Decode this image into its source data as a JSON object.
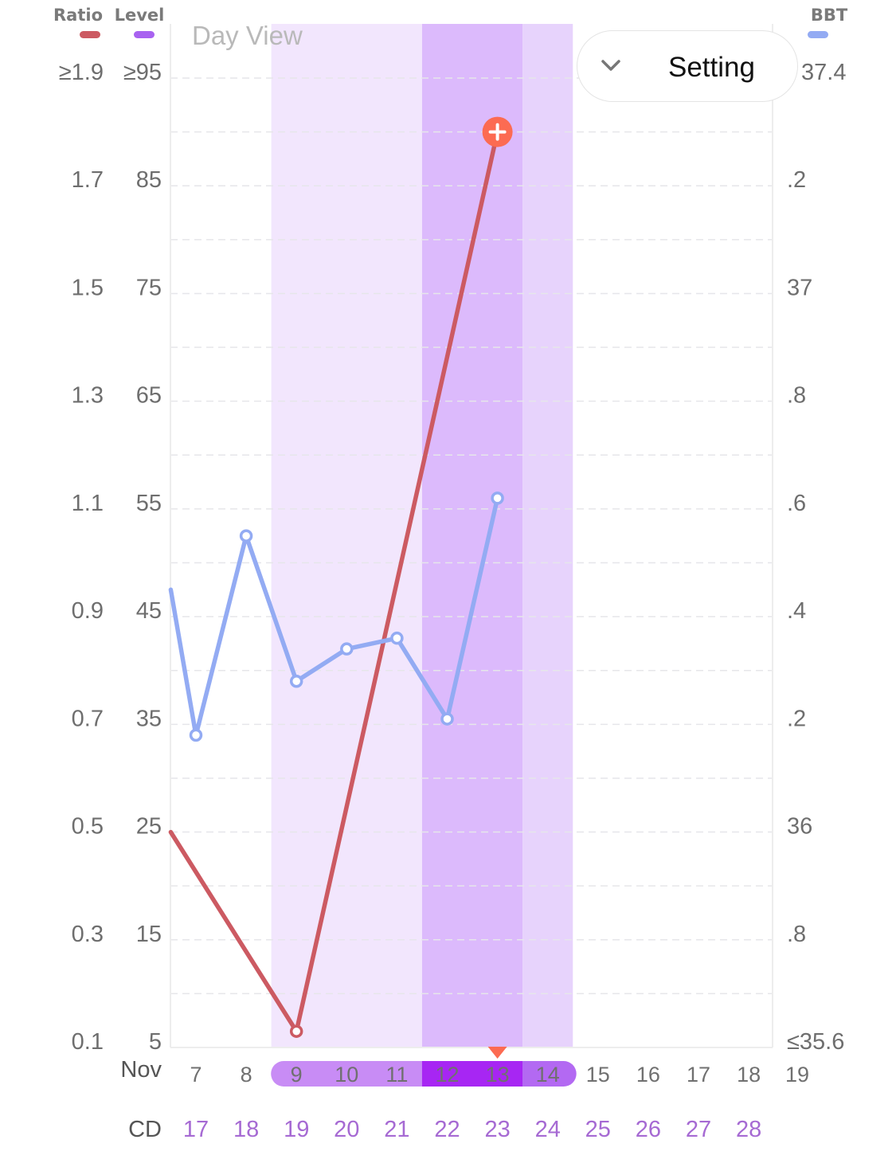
{
  "view_title": "Day View",
  "setting_button": {
    "label": "Setting",
    "icon": "chevron-down-icon"
  },
  "colors": {
    "ratio": "#cc5a62",
    "level": "#a862f0",
    "bbt": "#93abf3",
    "fertile_light": "#f2e6fd",
    "fertile_medium": "#e7d3fc",
    "fertile_peak": "#dcbafc",
    "pill_light": "#c88cf5",
    "pill_peak": "#a726f3",
    "pill_end": "#b369f2",
    "cd_text": "#a66ad3",
    "today_marker": "#fc6b52"
  },
  "chart_data": {
    "type": "line",
    "legend": [
      {
        "name": "Ratio",
        "color": "#cc5a62"
      },
      {
        "name": "Level",
        "color": "#a862f0"
      },
      {
        "name": "BBT",
        "color": "#93abf3"
      }
    ],
    "month_label": "Nov",
    "cd_label": "CD",
    "x": [
      7,
      8,
      9,
      10,
      11,
      12,
      13,
      14,
      15,
      16,
      17,
      18,
      19
    ],
    "x_labels": [
      "7",
      "8",
      "9",
      "10",
      "11",
      "12",
      "13",
      "14",
      "15",
      "16",
      "17",
      "18",
      "19"
    ],
    "cycle_days": [
      "17",
      "18",
      "19",
      "20",
      "21",
      "22",
      "23",
      "24",
      "25",
      "26",
      "27",
      "28"
    ],
    "left_axis_ratio_ticks": [
      "≥1.9",
      "1.7",
      "1.5",
      "1.3",
      "1.1",
      "0.9",
      "0.7",
      "0.5",
      "0.3",
      "0.1"
    ],
    "left_axis_level_ticks": [
      "≥95",
      "85",
      "75",
      "65",
      "55",
      "45",
      "35",
      "25",
      "15",
      "5"
    ],
    "right_axis_bbt_ticks": [
      "37.4",
      ".2",
      "37",
      ".8",
      ".6",
      ".4",
      ".2",
      "36",
      ".8",
      "≤35.6"
    ],
    "ratio_range": [
      0.1,
      1.9
    ],
    "bbt_range": [
      35.6,
      37.4
    ],
    "fertile_window": {
      "start": 9,
      "end": 14,
      "peak_start": 12,
      "peak_end": 13
    },
    "today": 13,
    "series": [
      {
        "name": "Ratio",
        "color": "#cc5a62",
        "points": [
          {
            "x": 6.5,
            "y": 0.5
          },
          {
            "x": 9,
            "y": 0.13
          },
          {
            "x": 13,
            "y": 1.8
          }
        ],
        "shown_points": [
          9,
          13
        ],
        "flagged_point": 13
      },
      {
        "name": "BBT",
        "color": "#93abf3",
        "points": [
          {
            "x": 6.5,
            "y": 36.45
          },
          {
            "x": 7,
            "y": 36.18
          },
          {
            "x": 8,
            "y": 36.55
          },
          {
            "x": 9,
            "y": 36.28
          },
          {
            "x": 10,
            "y": 36.34
          },
          {
            "x": 11,
            "y": 36.36
          },
          {
            "x": 12,
            "y": 36.21
          },
          {
            "x": 13,
            "y": 36.62
          }
        ],
        "shown_points": [
          7,
          8,
          9,
          10,
          11,
          12,
          13
        ]
      }
    ],
    "grid": true
  }
}
